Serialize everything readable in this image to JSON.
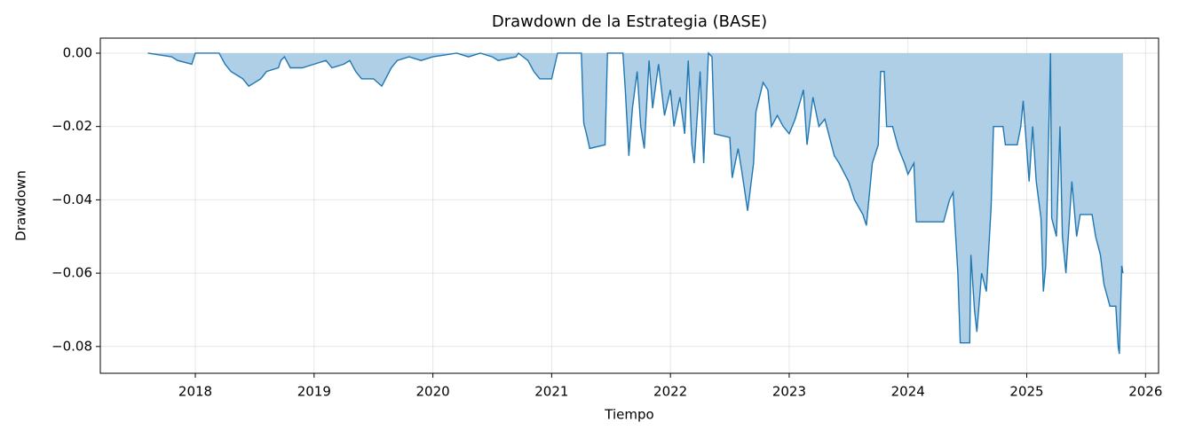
{
  "chart_data": {
    "type": "area",
    "title": "Drawdown de la Estrategia (BASE)",
    "x_label": "Tiempo",
    "y_label": "Drawdown",
    "color": "#1f77b4",
    "fill_color": "#afcfe6",
    "grid": true,
    "xlim": [
      2017.2,
      2026.11
    ],
    "ylim": [
      -0.0873,
      0.0041
    ],
    "xticks": [
      2018,
      2019,
      2020,
      2021,
      2022,
      2023,
      2024,
      2025,
      2026
    ],
    "yticks": [
      {
        "value": 0,
        "label": "0.00"
      },
      {
        "value": -0.02,
        "label": "−0.02"
      },
      {
        "value": -0.04,
        "label": "−0.04"
      },
      {
        "value": -0.06,
        "label": "−0.06"
      },
      {
        "value": -0.08,
        "label": "−0.08"
      }
    ],
    "x": [
      2017.6,
      2017.8,
      2017.85,
      2017.97,
      2018.0,
      2018.2,
      2018.25,
      2018.3,
      2018.35,
      2018.4,
      2018.45,
      2018.55,
      2018.6,
      2018.7,
      2018.72,
      2018.75,
      2018.8,
      2018.9,
      2019.0,
      2019.1,
      2019.15,
      2019.25,
      2019.3,
      2019.35,
      2019.4,
      2019.5,
      2019.57,
      2019.65,
      2019.7,
      2019.8,
      2019.9,
      2020.0,
      2020.2,
      2020.3,
      2020.4,
      2020.5,
      2020.55,
      2020.7,
      2020.72,
      2020.8,
      2020.85,
      2020.9,
      2021.0,
      2021.05,
      2021.25,
      2021.27,
      2021.3,
      2021.32,
      2021.45,
      2021.47,
      2021.6,
      2021.62,
      2021.65,
      2021.68,
      2021.72,
      2021.75,
      2021.78,
      2021.82,
      2021.85,
      2021.9,
      2021.95,
      2022.0,
      2022.03,
      2022.08,
      2022.12,
      2022.15,
      2022.18,
      2022.2,
      2022.25,
      2022.28,
      2022.32,
      2022.35,
      2022.37,
      2022.5,
      2022.52,
      2022.57,
      2022.6,
      2022.65,
      2022.7,
      2022.72,
      2022.78,
      2022.82,
      2022.85,
      2022.9,
      2022.95,
      2023.0,
      2023.05,
      2023.12,
      2023.15,
      2023.2,
      2023.25,
      2023.3,
      2023.38,
      2023.42,
      2023.5,
      2023.55,
      2023.62,
      2023.65,
      2023.7,
      2023.75,
      2023.77,
      2023.8,
      2023.82,
      2023.87,
      2023.92,
      2023.97,
      2024.0,
      2024.05,
      2024.07,
      2024.3,
      2024.35,
      2024.38,
      2024.42,
      2024.44,
      2024.52,
      2024.53,
      2024.56,
      2024.58,
      2024.62,
      2024.66,
      2024.7,
      2024.72,
      2024.8,
      2024.82,
      2024.92,
      2024.95,
      2024.97,
      2025.02,
      2025.05,
      2025.08,
      2025.12,
      2025.14,
      2025.16,
      2025.2,
      2025.21,
      2025.25,
      2025.28,
      2025.3,
      2025.33,
      2025.38,
      2025.42,
      2025.45,
      2025.55,
      2025.58,
      2025.62,
      2025.65,
      2025.7,
      2025.75,
      2025.77,
      2025.78,
      2025.8,
      2025.81
    ],
    "values": [
      0,
      -0.001,
      -0.002,
      -0.003,
      0,
      0,
      -0.003,
      -0.005,
      -0.006,
      -0.007,
      -0.009,
      -0.007,
      -0.005,
      -0.004,
      -0.002,
      -0.001,
      -0.004,
      -0.004,
      -0.003,
      -0.002,
      -0.004,
      -0.003,
      -0.002,
      -0.005,
      -0.007,
      -0.007,
      -0.009,
      -0.004,
      -0.002,
      -0.001,
      -0.002,
      -0.001,
      0,
      -0.001,
      0,
      -0.001,
      -0.002,
      -0.001,
      0,
      -0.002,
      -0.005,
      -0.007,
      -0.007,
      0,
      0,
      -0.019,
      -0.023,
      -0.026,
      -0.025,
      0,
      0,
      -0.01,
      -0.028,
      -0.015,
      -0.005,
      -0.02,
      -0.026,
      -0.002,
      -0.015,
      -0.003,
      -0.017,
      -0.01,
      -0.02,
      -0.012,
      -0.022,
      -0.002,
      -0.025,
      -0.03,
      -0.005,
      -0.03,
      0,
      -0.001,
      -0.022,
      -0.023,
      -0.034,
      -0.026,
      -0.032,
      -0.043,
      -0.03,
      -0.016,
      -0.008,
      -0.01,
      -0.02,
      -0.017,
      -0.02,
      -0.022,
      -0.018,
      -0.01,
      -0.025,
      -0.012,
      -0.02,
      -0.018,
      -0.028,
      -0.03,
      -0.035,
      -0.04,
      -0.044,
      -0.047,
      -0.03,
      -0.025,
      -0.005,
      -0.005,
      -0.02,
      -0.02,
      -0.026,
      -0.03,
      -0.033,
      -0.03,
      -0.046,
      -0.046,
      -0.04,
      -0.038,
      -0.06,
      -0.079,
      -0.079,
      -0.055,
      -0.07,
      -0.076,
      -0.06,
      -0.065,
      -0.042,
      -0.02,
      -0.02,
      -0.025,
      -0.025,
      -0.02,
      -0.013,
      -0.035,
      -0.02,
      -0.035,
      -0.045,
      -0.065,
      -0.058,
      0,
      -0.045,
      -0.05,
      -0.02,
      -0.05,
      -0.06,
      -0.035,
      -0.05,
      -0.044,
      -0.044,
      -0.05,
      -0.055,
      -0.063,
      -0.069,
      -0.069,
      -0.08,
      -0.082,
      -0.058,
      -0.06
    ]
  }
}
